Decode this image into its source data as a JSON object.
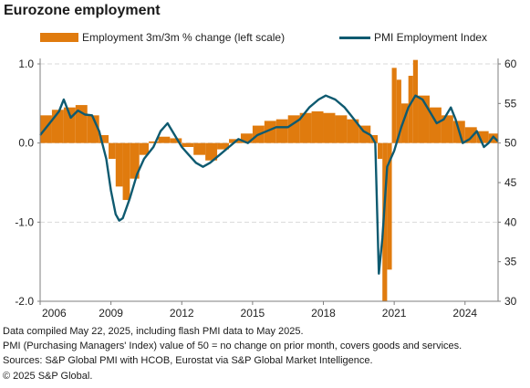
{
  "title": "Eurozone employment",
  "legend": {
    "bar_label": "Employment 3m/3m % change (left scale)",
    "line_label": "PMI Employment Index"
  },
  "colors": {
    "bar": "#E07B0E",
    "line": "#0E5A70",
    "grid": "#d9d9d9",
    "axis": "#7f7f7f"
  },
  "footnotes": [
    "Data compiled May 22, 2025, including flash PMI data to May 2025.",
    "PMI (Purchasing Managers' Index) value of 50 = no change on prior month, covers goods and services.",
    "Sources: S&P Global PMI with HCOB, Eurostat via S&P Global Market Intelligence.",
    "© 2025 S&P Global."
  ],
  "chart_data": {
    "type": "bar+line",
    "title": "Eurozone employment",
    "x_ticks": [
      "2006",
      "2009",
      "2012",
      "2015",
      "2018",
      "2021",
      "2024"
    ],
    "x_range": [
      2006.0,
      2025.4
    ],
    "left_axis": {
      "ticks": [
        "1.0",
        "0.0",
        "-1.0",
        "-2.0"
      ],
      "range": [
        -2.0,
        1.0
      ]
    },
    "right_axis": {
      "ticks": [
        "60",
        "55",
        "50",
        "45",
        "40",
        "35",
        "30"
      ],
      "range": [
        30,
        60
      ]
    },
    "grid": true,
    "legend_position": "top",
    "series": [
      {
        "name": "Employment 3m/3m % change (left scale)",
        "kind": "bar",
        "axis": "left",
        "points": [
          [
            2006.0,
            0.35
          ],
          [
            2006.5,
            0.42
          ],
          [
            2007.0,
            0.45
          ],
          [
            2007.5,
            0.48
          ],
          [
            2008.0,
            0.35
          ],
          [
            2008.5,
            0.1
          ],
          [
            2008.9,
            -0.2
          ],
          [
            2009.2,
            -0.55
          ],
          [
            2009.5,
            -0.72
          ],
          [
            2009.8,
            -0.45
          ],
          [
            2010.2,
            -0.15
          ],
          [
            2010.6,
            0.02
          ],
          [
            2011.0,
            0.08
          ],
          [
            2011.5,
            0.06
          ],
          [
            2012.0,
            -0.05
          ],
          [
            2012.5,
            -0.15
          ],
          [
            2013.0,
            -0.22
          ],
          [
            2013.5,
            -0.08
          ],
          [
            2014.0,
            0.05
          ],
          [
            2014.5,
            0.12
          ],
          [
            2015.0,
            0.22
          ],
          [
            2015.5,
            0.28
          ],
          [
            2016.0,
            0.3
          ],
          [
            2016.5,
            0.35
          ],
          [
            2017.0,
            0.38
          ],
          [
            2017.5,
            0.4
          ],
          [
            2018.0,
            0.38
          ],
          [
            2018.5,
            0.35
          ],
          [
            2019.0,
            0.3
          ],
          [
            2019.5,
            0.22
          ],
          [
            2020.0,
            0.1
          ],
          [
            2020.3,
            -0.2
          ],
          [
            2020.5,
            -2.0
          ],
          [
            2020.7,
            -1.6
          ],
          [
            2020.9,
            0.95
          ],
          [
            2021.1,
            0.8
          ],
          [
            2021.3,
            0.5
          ],
          [
            2021.6,
            0.85
          ],
          [
            2021.8,
            1.05
          ],
          [
            2022.0,
            0.6
          ],
          [
            2022.5,
            0.45
          ],
          [
            2023.0,
            0.35
          ],
          [
            2023.5,
            0.28
          ],
          [
            2024.0,
            0.2
          ],
          [
            2024.5,
            0.15
          ],
          [
            2025.0,
            0.12
          ]
        ]
      },
      {
        "name": "PMI Employment Index",
        "kind": "line",
        "axis": "right",
        "points": [
          [
            2006.0,
            51.0
          ],
          [
            2006.4,
            52.5
          ],
          [
            2006.8,
            54.0
          ],
          [
            2007.0,
            55.5
          ],
          [
            2007.3,
            53.2
          ],
          [
            2007.6,
            54.1
          ],
          [
            2007.9,
            53.6
          ],
          [
            2008.2,
            53.5
          ],
          [
            2008.5,
            51.5
          ],
          [
            2008.8,
            48.0
          ],
          [
            2009.0,
            44.0
          ],
          [
            2009.2,
            41.0
          ],
          [
            2009.35,
            40.2
          ],
          [
            2009.5,
            40.5
          ],
          [
            2009.8,
            43.0
          ],
          [
            2010.1,
            46.0
          ],
          [
            2010.4,
            48.0
          ],
          [
            2010.8,
            49.5
          ],
          [
            2011.1,
            51.5
          ],
          [
            2011.4,
            52.5
          ],
          [
            2011.7,
            51.0
          ],
          [
            2012.0,
            49.5
          ],
          [
            2012.3,
            48.5
          ],
          [
            2012.6,
            47.5
          ],
          [
            2012.9,
            47.0
          ],
          [
            2013.2,
            47.5
          ],
          [
            2013.6,
            48.5
          ],
          [
            2014.0,
            49.5
          ],
          [
            2014.4,
            50.5
          ],
          [
            2014.8,
            50.0
          ],
          [
            2015.2,
            51.0
          ],
          [
            2015.6,
            51.5
          ],
          [
            2016.0,
            52.0
          ],
          [
            2016.5,
            52.0
          ],
          [
            2017.0,
            53.0
          ],
          [
            2017.4,
            54.5
          ],
          [
            2017.8,
            55.5
          ],
          [
            2018.1,
            56.0
          ],
          [
            2018.5,
            55.5
          ],
          [
            2018.9,
            54.5
          ],
          [
            2019.3,
            53.0
          ],
          [
            2019.7,
            51.5
          ],
          [
            2020.0,
            51.0
          ],
          [
            2020.2,
            50.0
          ],
          [
            2020.35,
            33.5
          ],
          [
            2020.5,
            38.0
          ],
          [
            2020.7,
            47.0
          ],
          [
            2021.0,
            49.0
          ],
          [
            2021.3,
            52.0
          ],
          [
            2021.6,
            54.5
          ],
          [
            2021.9,
            56.0
          ],
          [
            2022.2,
            55.5
          ],
          [
            2022.5,
            54.0
          ],
          [
            2022.8,
            52.5
          ],
          [
            2023.1,
            53.0
          ],
          [
            2023.4,
            54.5
          ],
          [
            2023.6,
            53.0
          ],
          [
            2023.9,
            50.0
          ],
          [
            2024.2,
            50.5
          ],
          [
            2024.5,
            51.5
          ],
          [
            2024.8,
            49.5
          ],
          [
            2025.0,
            50.0
          ],
          [
            2025.2,
            50.8
          ],
          [
            2025.4,
            50.2
          ]
        ]
      }
    ]
  }
}
